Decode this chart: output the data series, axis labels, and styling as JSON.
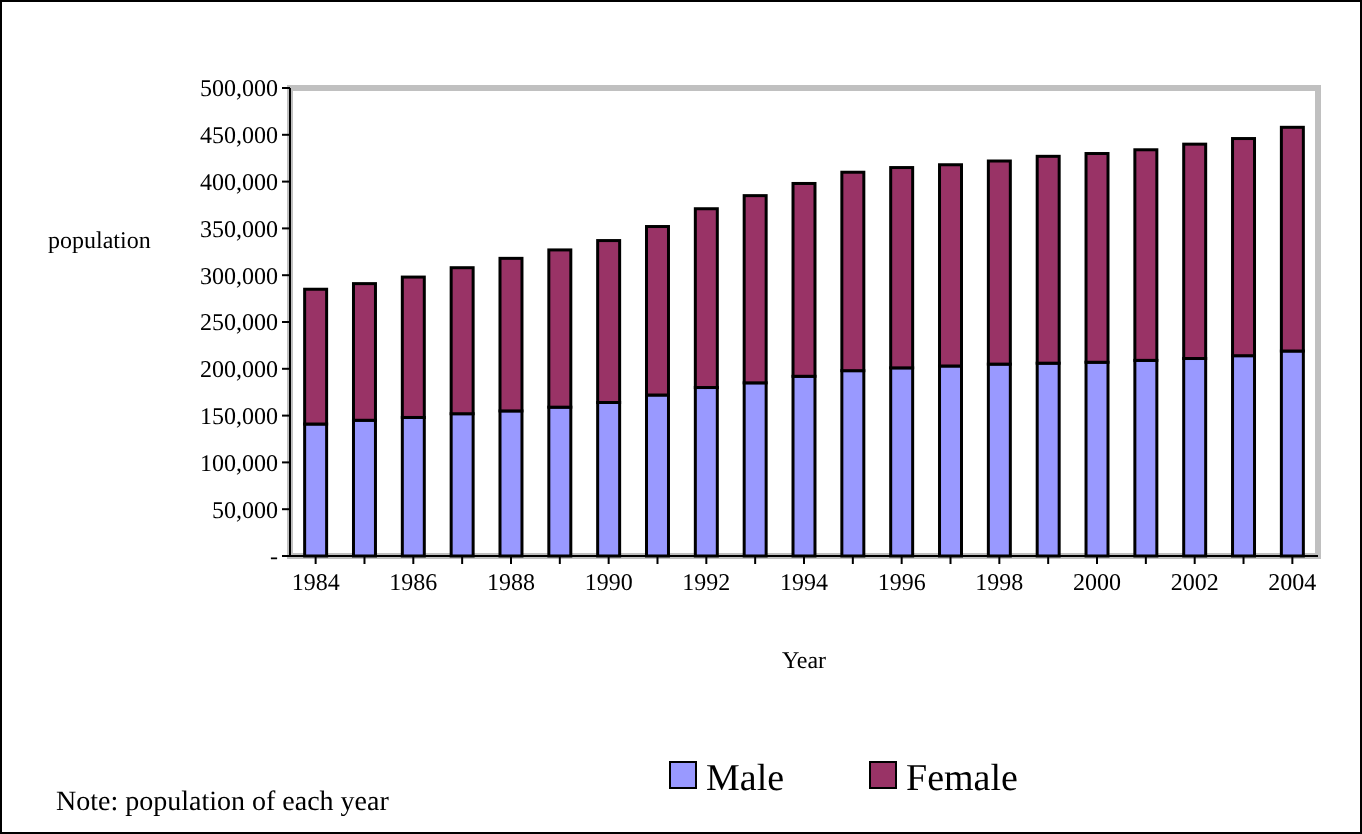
{
  "chart_data": {
    "type": "bar",
    "stacked": true,
    "xlabel": "Year",
    "ylabel": "population",
    "annotations": [
      "Note: population of each year"
    ],
    "categories": [
      "1984",
      null,
      "1986",
      null,
      "1988",
      null,
      "1990",
      null,
      "1992",
      null,
      "1994",
      null,
      "1996",
      null,
      "1998",
      null,
      "2000",
      null,
      "2002",
      null,
      "2004"
    ],
    "series": [
      {
        "name": "Male",
        "color": "#9999ff",
        "values": [
          141000,
          145000,
          148000,
          152000,
          155000,
          159000,
          164000,
          172000,
          180000,
          185000,
          192000,
          198000,
          201000,
          203000,
          205000,
          206000,
          207000,
          209000,
          211000,
          214000,
          219000
        ]
      },
      {
        "name": "Female",
        "color": "#993366",
        "values": [
          144000,
          146000,
          150000,
          156000,
          163000,
          168000,
          173000,
          180000,
          191000,
          200000,
          206000,
          212000,
          214000,
          215000,
          217000,
          221000,
          223000,
          225000,
          229000,
          232000,
          239000
        ]
      }
    ],
    "ylim": [
      0,
      500000
    ],
    "yticks": [
      {
        "value": 0,
        "label": "-"
      },
      {
        "value": 50000,
        "label": "50,000"
      },
      {
        "value": 100000,
        "label": "100,000"
      },
      {
        "value": 150000,
        "label": "150,000"
      },
      {
        "value": 200000,
        "label": "200,000"
      },
      {
        "value": 250000,
        "label": "250,000"
      },
      {
        "value": 300000,
        "label": "300,000"
      },
      {
        "value": 350000,
        "label": "350,000"
      },
      {
        "value": 400000,
        "label": "400,000"
      },
      {
        "value": 450000,
        "label": "450,000"
      },
      {
        "value": 500000,
        "label": "500,000"
      }
    ],
    "grid": false,
    "legend": "bottom"
  }
}
